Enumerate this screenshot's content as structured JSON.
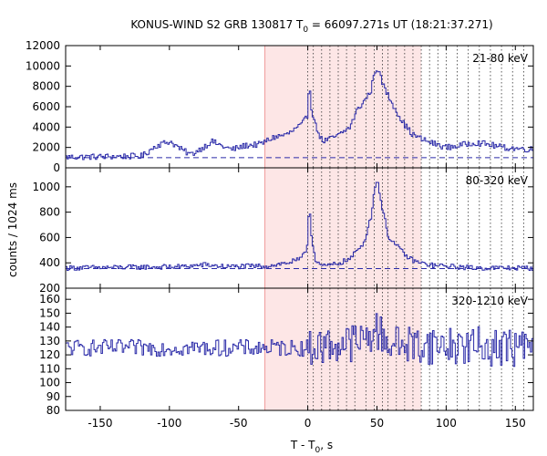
{
  "chart_data": {
    "type": "line",
    "title": "KONUS-WIND S2 GRB 130817 T",
    "title_sub": "0",
    "title_rest": " = 66097.271s UT (18:21:37.271)",
    "xlabel": "T - T",
    "xlabel_sub": "0",
    "xlabel_rest": ", s",
    "ylabel": "counts / 1024 ms",
    "xlim": [
      -175,
      163
    ],
    "x_ticks": [
      -150,
      -100,
      -50,
      0,
      50,
      100,
      150
    ],
    "x_tick_labels": [
      "-150",
      "-100",
      "-50",
      "0",
      "50",
      "100",
      "150"
    ],
    "shaded_interval": [
      -31,
      82
    ],
    "shade_color": "#fde6e6",
    "boundary_color": "#ef9a9a",
    "line_color": "#2a2aa8",
    "vertical_dotted_lines": [
      0,
      4,
      10,
      16,
      22,
      28,
      34,
      42,
      48,
      54,
      58,
      64,
      70,
      76,
      82,
      88,
      94,
      100,
      108,
      116,
      124,
      132,
      140,
      148,
      156
    ],
    "panels": [
      {
        "name": "21-80 keV",
        "ylim": [
          0,
          12000
        ],
        "y_ticks": [
          0,
          2000,
          4000,
          6000,
          8000,
          10000,
          12000
        ],
        "y_tick_labels": [
          "0",
          "2000",
          "4000",
          "6000",
          "8000",
          "10000",
          "12000"
        ],
        "background_level": 1000,
        "profile": [
          [
            -175,
            1050
          ],
          [
            -120,
            1150
          ],
          [
            -110,
            2200
          ],
          [
            -100,
            2600
          ],
          [
            -92,
            1800
          ],
          [
            -85,
            1300
          ],
          [
            -75,
            2100
          ],
          [
            -70,
            2600
          ],
          [
            -60,
            2000
          ],
          [
            -55,
            1800
          ],
          [
            -45,
            2200
          ],
          [
            -35,
            2300
          ],
          [
            -25,
            3000
          ],
          [
            -15,
            3300
          ],
          [
            -5,
            4200
          ],
          [
            -1,
            5000
          ],
          [
            0,
            7200
          ],
          [
            1,
            8000
          ],
          [
            2,
            6000
          ],
          [
            5,
            4200
          ],
          [
            10,
            2600
          ],
          [
            15,
            2800
          ],
          [
            22,
            3200
          ],
          [
            30,
            4000
          ],
          [
            35,
            5600
          ],
          [
            40,
            6500
          ],
          [
            45,
            7500
          ],
          [
            48,
            9500
          ],
          [
            50,
            9800
          ],
          [
            53,
            8500
          ],
          [
            56,
            7500
          ],
          [
            62,
            6000
          ],
          [
            68,
            4500
          ],
          [
            75,
            3300
          ],
          [
            82,
            2800
          ],
          [
            90,
            2400
          ],
          [
            100,
            2000
          ],
          [
            110,
            2200
          ],
          [
            120,
            2500
          ],
          [
            130,
            2300
          ],
          [
            140,
            2000
          ],
          [
            150,
            1900
          ],
          [
            163,
            1800
          ]
        ],
        "noise": 300
      },
      {
        "name": "80-320 keV",
        "ylim": [
          200,
          1150
        ],
        "y_ticks": [
          200,
          400,
          600,
          800,
          1000
        ],
        "y_tick_labels": [
          "200",
          "400",
          "600",
          "800",
          "1000"
        ],
        "background_level": 355,
        "profile": [
          [
            -175,
            360
          ],
          [
            -90,
            370
          ],
          [
            -75,
            385
          ],
          [
            -60,
            370
          ],
          [
            -30,
            375
          ],
          [
            -15,
            400
          ],
          [
            -5,
            430
          ],
          [
            -1,
            520
          ],
          [
            0,
            760
          ],
          [
            1,
            830
          ],
          [
            2,
            620
          ],
          [
            5,
            430
          ],
          [
            10,
            370
          ],
          [
            20,
            390
          ],
          [
            30,
            430
          ],
          [
            40,
            560
          ],
          [
            45,
            750
          ],
          [
            48,
            1000
          ],
          [
            50,
            1050
          ],
          [
            53,
            850
          ],
          [
            58,
            600
          ],
          [
            65,
            520
          ],
          [
            72,
            440
          ],
          [
            80,
            400
          ],
          [
            90,
            380
          ],
          [
            120,
            360
          ],
          [
            163,
            360
          ]
        ],
        "noise": 20
      },
      {
        "name": "320-1210 keV",
        "ylim": [
          80,
          168
        ],
        "y_ticks": [
          80,
          90,
          100,
          110,
          120,
          130,
          140,
          150,
          160
        ],
        "y_tick_labels": [
          "80",
          "90",
          "100",
          "110",
          "120",
          "130",
          "140",
          "150",
          "160"
        ],
        "background_level": null,
        "profile": [
          [
            -175,
            125
          ],
          [
            0,
            125
          ],
          [
            40,
            130
          ],
          [
            48,
            138
          ],
          [
            52,
            135
          ],
          [
            60,
            128
          ],
          [
            163,
            125
          ]
        ],
        "noise": 6,
        "noise_after_zero": 14
      }
    ]
  }
}
